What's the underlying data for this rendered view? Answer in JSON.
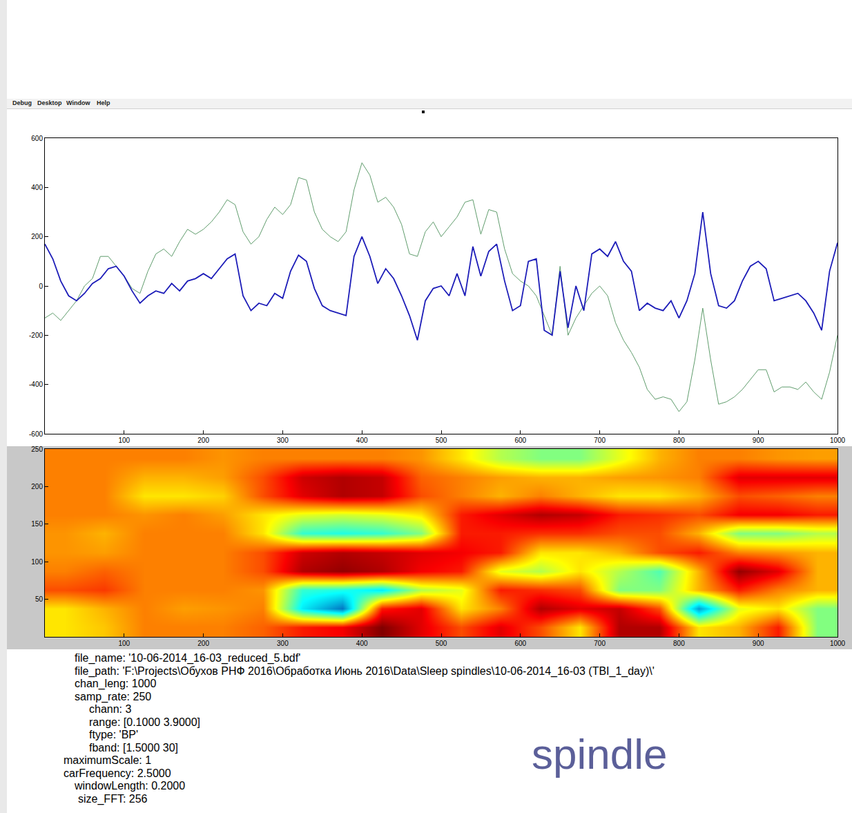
{
  "menu": [
    "Debug",
    "Desktop",
    "Window",
    "Help"
  ],
  "chart_data": [
    {
      "type": "line",
      "x": [
        0,
        10,
        20,
        30,
        40,
        50,
        60,
        70,
        80,
        90,
        100,
        110,
        120,
        130,
        140,
        150,
        160,
        170,
        180,
        190,
        200,
        210,
        220,
        230,
        240,
        250,
        260,
        270,
        280,
        290,
        300,
        310,
        320,
        330,
        340,
        350,
        360,
        370,
        380,
        390,
        400,
        410,
        420,
        430,
        440,
        450,
        460,
        470,
        480,
        490,
        500,
        510,
        520,
        530,
        540,
        550,
        560,
        570,
        580,
        590,
        600,
        610,
        620,
        630,
        640,
        650,
        660,
        670,
        680,
        690,
        700,
        710,
        720,
        730,
        740,
        750,
        760,
        770,
        780,
        790,
        800,
        810,
        820,
        830,
        840,
        850,
        860,
        870,
        880,
        890,
        900,
        910,
        920,
        930,
        940,
        950,
        960,
        970,
        980,
        990,
        1000
      ],
      "series": [
        {
          "color": "#5f9c6c",
          "values": [
            -130,
            -110,
            -140,
            -100,
            -60,
            0,
            30,
            120,
            120,
            80,
            40,
            -10,
            -30,
            60,
            130,
            150,
            120,
            180,
            230,
            210,
            230,
            260,
            300,
            350,
            330,
            220,
            170,
            200,
            270,
            320,
            290,
            330,
            440,
            430,
            300,
            230,
            200,
            180,
            220,
            390,
            500,
            450,
            340,
            360,
            320,
            250,
            130,
            120,
            220,
            260,
            200,
            240,
            280,
            340,
            350,
            210,
            310,
            300,
            150,
            50,
            20,
            0,
            -40,
            -120,
            -200,
            80,
            -200,
            -130,
            -80,
            -30,
            0,
            -40,
            -150,
            -220,
            -270,
            -330,
            -420,
            -460,
            -450,
            -460,
            -510,
            -470,
            -300,
            -90,
            -300,
            -480,
            -470,
            -450,
            -420,
            -380,
            -340,
            -340,
            -430,
            -410,
            -410,
            -420,
            -390,
            -430,
            -460,
            -350,
            -200
          ]
        },
        {
          "color": "#1c1cb8",
          "values": [
            170,
            110,
            20,
            -40,
            -60,
            -30,
            10,
            30,
            70,
            80,
            40,
            -20,
            -70,
            -40,
            -20,
            -30,
            10,
            -20,
            20,
            30,
            50,
            30,
            70,
            110,
            130,
            -40,
            -100,
            -70,
            -80,
            -30,
            -50,
            60,
            125,
            100,
            -10,
            -80,
            -100,
            -110,
            -120,
            120,
            200,
            120,
            10,
            70,
            30,
            -40,
            -120,
            -220,
            -60,
            -10,
            0,
            -40,
            50,
            -40,
            160,
            40,
            140,
            170,
            20,
            -100,
            -80,
            100,
            110,
            -180,
            -200,
            60,
            -170,
            0,
            -100,
            130,
            150,
            120,
            180,
            100,
            60,
            -100,
            -70,
            -90,
            -100,
            -60,
            -130,
            -60,
            50,
            300,
            50,
            -80,
            -90,
            -60,
            20,
            80,
            100,
            70,
            -60,
            -50,
            -40,
            -30,
            -60,
            -110,
            -180,
            60,
            175
          ]
        }
      ],
      "xlim": [
        0,
        1000
      ],
      "xticks": [
        100,
        200,
        300,
        400,
        500,
        600,
        700,
        800,
        900,
        1000
      ],
      "ylim": [
        -600,
        600
      ],
      "yticks": [
        -600,
        -400,
        -200,
        0,
        200,
        400,
        600
      ],
      "grid": false
    },
    {
      "type": "heatmap",
      "x": [
        25,
        75,
        125,
        175,
        225,
        275,
        325,
        375,
        425,
        475,
        525,
        575,
        625,
        675,
        725,
        775,
        825,
        875,
        925,
        975
      ],
      "y": [
        12.5,
        37.5,
        62.5,
        87.5,
        112.5,
        137.5,
        162.5,
        187.5,
        212.5,
        237.5
      ],
      "z": [
        [
          6.5,
          6.8,
          7.5,
          7.5,
          7.5,
          7.8,
          8.5,
          8.8,
          10,
          9,
          8,
          9,
          8,
          6.5,
          9.5,
          9.5,
          6.5,
          7,
          8.5,
          5
        ],
        [
          6.5,
          7,
          7.5,
          7.2,
          7.3,
          7.5,
          3.5,
          2,
          8.5,
          9,
          6.5,
          7.5,
          9.5,
          9,
          9.3,
          8,
          2.5,
          6,
          6.5,
          5
        ],
        [
          8,
          8.2,
          7.5,
          7.5,
          7.5,
          7.3,
          4.2,
          4,
          3.5,
          5.5,
          6,
          8.5,
          8.3,
          8,
          5,
          5,
          7,
          8.5,
          7.5,
          7
        ],
        [
          7.5,
          7.8,
          7.5,
          7.5,
          7.5,
          8,
          9.5,
          9.8,
          9.5,
          8.8,
          8.5,
          6,
          5.5,
          6.5,
          5.5,
          4.5,
          7,
          9.8,
          9,
          7
        ],
        [
          7.3,
          7.2,
          7.5,
          7.5,
          7.5,
          8,
          9.2,
          9.5,
          9.3,
          9,
          8.8,
          8.5,
          6.5,
          6.5,
          7,
          8,
          8.5,
          7.5,
          7.3,
          7
        ],
        [
          7.3,
          7,
          7.5,
          7.5,
          7.5,
          6.5,
          4.2,
          4,
          4.2,
          5,
          8.5,
          8.5,
          8.3,
          8.3,
          8,
          8,
          7,
          5,
          5,
          5.5
        ],
        [
          7.5,
          7.5,
          7.3,
          7.5,
          7.2,
          6.5,
          6,
          5.8,
          6,
          6.5,
          8.5,
          9,
          9.5,
          9.3,
          8.5,
          8.3,
          8,
          8.8,
          8.8,
          8.5
        ],
        [
          7.5,
          7.5,
          6.5,
          6.5,
          6.7,
          8,
          9,
          9.5,
          9.3,
          8,
          7.5,
          7,
          7.5,
          7,
          6.5,
          6.5,
          7,
          8,
          7.8,
          7.5
        ],
        [
          7.5,
          7.5,
          7,
          7,
          7.2,
          8,
          9.2,
          9.5,
          9.3,
          7.8,
          7.5,
          7.2,
          7,
          7,
          7.2,
          7.3,
          7.5,
          9,
          9,
          9
        ],
        [
          7.5,
          7.5,
          7.5,
          7.5,
          7.3,
          7.5,
          7.5,
          7.5,
          7.5,
          7.3,
          6.5,
          5.5,
          5,
          5,
          6,
          7,
          7.5,
          7.5,
          7.3,
          7.2
        ]
      ],
      "zlim": [
        0,
        10
      ],
      "xlim": [
        0,
        1000
      ],
      "xticks": [
        100,
        200,
        300,
        400,
        500,
        600,
        700,
        800,
        900,
        1000
      ],
      "ylim": [
        0,
        250
      ],
      "yticks": [
        50,
        100,
        150,
        200,
        250
      ],
      "grid": false
    }
  ],
  "parameters": [
    "file_name: '10-06-2014_16-03_reduced_5.bdf'",
    "file_path: 'F:\\Projects\\Обухов РНФ 2016\\Обработка Июнь 2016\\Data\\Sleep spindles\\10-06-2014_16-03 (TBI_1_day)\\'",
    "chan_leng: 1000",
    "samp_rate: 250",
    "chann: 3",
    "range: [0.1000 3.9000]",
    "ftype: 'BP'",
    "fband: [1.5000 30]",
    "maximumScale: 1",
    "carFrequency: 2.5000",
    "windowLength: 0.2000",
    "size_FFT: 256"
  ],
  "caption": "spindle"
}
